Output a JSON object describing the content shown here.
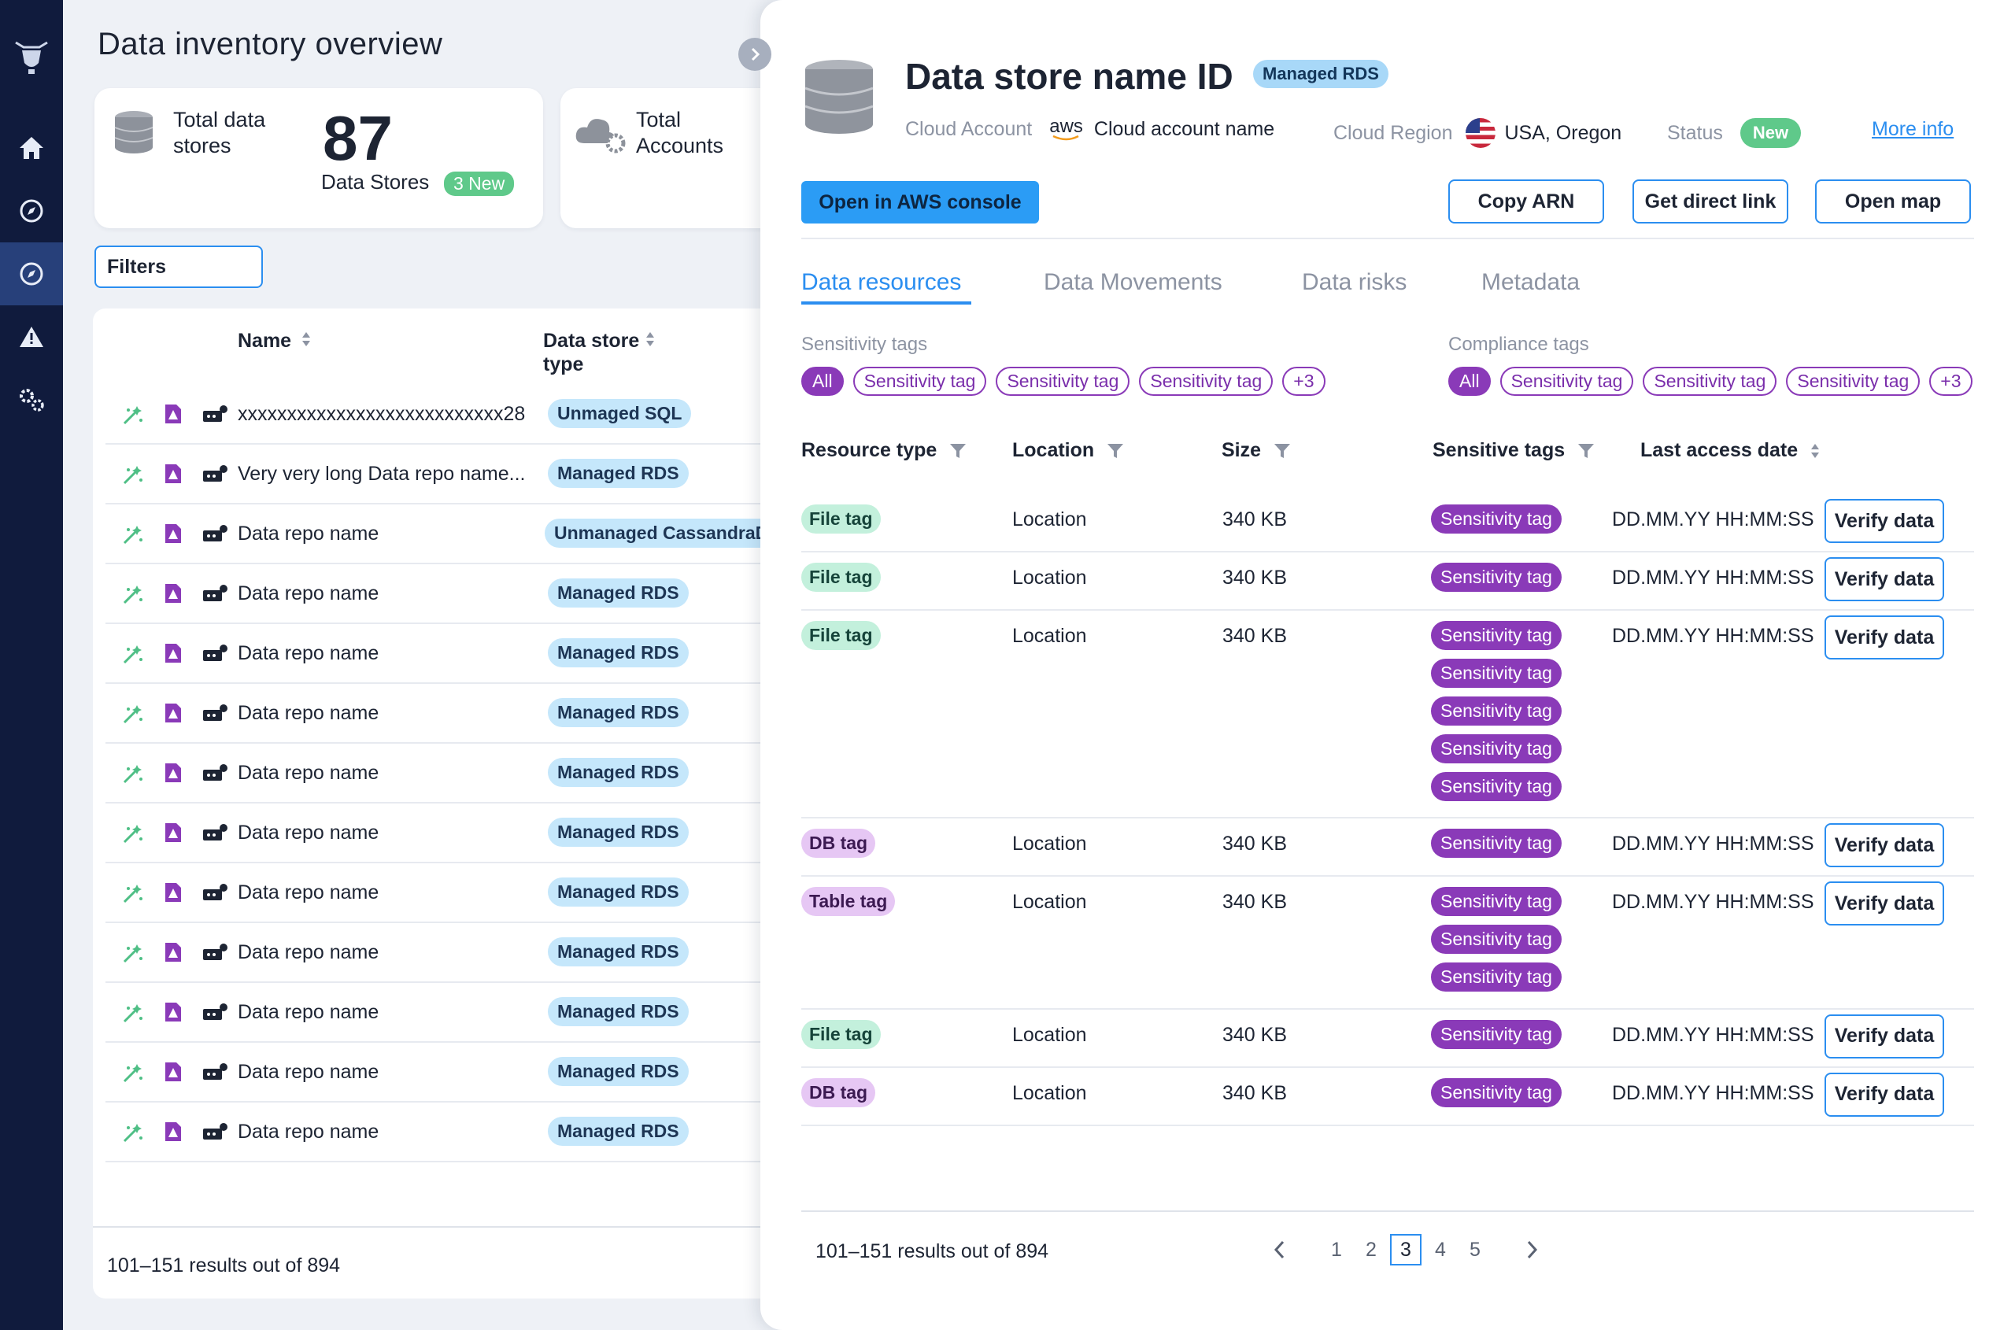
{
  "inventory": {
    "title": "Data inventory overview",
    "cards": [
      {
        "label": "Total data stores",
        "value": "87",
        "sub": "Data Stores",
        "badge": "3 New"
      },
      {
        "label": "Total Accounts"
      }
    ],
    "filters_label": "Filters",
    "columns": {
      "name": "Name",
      "type": "Data store type"
    },
    "rows": [
      {
        "name": "xxxxxxxxxxxxxxxxxxxxxxxxxxx28",
        "type": "Unmaged SQL"
      },
      {
        "name": "Very very long Data repo name...",
        "type": "Managed RDS"
      },
      {
        "name": "Data repo name",
        "type": "Unmanaged CassandraDB"
      },
      {
        "name": "Data repo name",
        "type": "Managed RDS"
      },
      {
        "name": "Data repo name",
        "type": "Managed RDS"
      },
      {
        "name": "Data repo name",
        "type": "Managed RDS"
      },
      {
        "name": "Data repo name",
        "type": "Managed RDS"
      },
      {
        "name": "Data repo name",
        "type": "Managed RDS"
      },
      {
        "name": "Data repo name",
        "type": "Managed RDS"
      },
      {
        "name": "Data repo name",
        "type": "Managed RDS"
      },
      {
        "name": "Data repo name",
        "type": "Managed RDS"
      },
      {
        "name": "Data repo name",
        "type": "Managed RDS"
      },
      {
        "name": "Data repo name",
        "type": "Managed RDS"
      }
    ],
    "footer": "101–151 results out of 894"
  },
  "drawer": {
    "title": "Data store name ID",
    "badge": "Managed RDS",
    "meta": {
      "cloud_account_label": "Cloud Account",
      "aws_text": "aws",
      "cloud_account_value": "Cloud account name",
      "cloud_region_label": "Cloud Region",
      "cloud_region_value": "USA, Oregon",
      "status_label": "Status",
      "status_value": "New",
      "more_info": "More info"
    },
    "buttons": {
      "open_console": "Open in AWS console",
      "copy_arn": "Copy ARN",
      "direct_link": "Get direct link",
      "open_map": "Open map"
    },
    "tabs": [
      "Data resources",
      "Data Movements",
      "Data risks",
      "Metadata"
    ],
    "sensitivity_tags": {
      "label": "Sensitivity tags",
      "all": "All",
      "chips": [
        "Sensitivity tag",
        "Sensitivity tag",
        "Sensitivity tag"
      ],
      "more": "+3"
    },
    "compliance_tags": {
      "label": "Compliance tags",
      "all": "All",
      "chips": [
        "Sensitivity tag",
        "Sensitivity tag",
        "Sensitivity tag"
      ],
      "more": "+3"
    },
    "columns": {
      "resource_type": "Resource type",
      "location": "Location",
      "size": "Size",
      "sensitive_tags": "Sensitive tags",
      "last_access": "Last access date"
    },
    "verify_label": "Verify data",
    "rows": [
      {
        "type": "File tag",
        "kind": "file",
        "location": "Location",
        "size": "340 KB",
        "tags": [
          "Sensitivity tag"
        ],
        "date": "DD.MM.YY HH:MM:SS"
      },
      {
        "type": "File tag",
        "kind": "file",
        "location": "Location",
        "size": "340 KB",
        "tags": [
          "Sensitivity tag"
        ],
        "date": "DD.MM.YY HH:MM:SS"
      },
      {
        "type": "File tag",
        "kind": "file",
        "location": "Location",
        "size": "340 KB",
        "tags": [
          "Sensitivity tag",
          "Sensitivity tag",
          "Sensitivity tag",
          "Sensitivity tag",
          "Sensitivity tag"
        ],
        "date": "DD.MM.YY HH:MM:SS"
      },
      {
        "type": "DB tag",
        "kind": "db",
        "location": "Location",
        "size": "340 KB",
        "tags": [
          "Sensitivity tag"
        ],
        "date": "DD.MM.YY HH:MM:SS"
      },
      {
        "type": "Table tag",
        "kind": "db",
        "location": "Location",
        "size": "340 KB",
        "tags": [
          "Sensitivity tag",
          "Sensitivity tag",
          "Sensitivity tag"
        ],
        "date": "DD.MM.YY HH:MM:SS"
      },
      {
        "type": "File tag",
        "kind": "file",
        "location": "Location",
        "size": "340 KB",
        "tags": [
          "Sensitivity tag"
        ],
        "date": "DD.MM.YY HH:MM:SS"
      },
      {
        "type": "DB tag",
        "kind": "db",
        "location": "Location",
        "size": "340 KB",
        "tags": [
          "Sensitivity tag"
        ],
        "date": "DD.MM.YY HH:MM:SS"
      }
    ],
    "footer": "101–151 results out of 894",
    "pages": [
      "1",
      "2",
      "3",
      "4",
      "5"
    ],
    "current_page": "3"
  }
}
